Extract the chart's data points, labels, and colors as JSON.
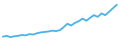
{
  "x": [
    0,
    1,
    2,
    3,
    4,
    5,
    6,
    7,
    8,
    9,
    10,
    11,
    12,
    13,
    14,
    15,
    16,
    17,
    18,
    19,
    20,
    21,
    22,
    23,
    24,
    25,
    26,
    27,
    28,
    29,
    30
  ],
  "y": [
    1.0,
    1.1,
    0.95,
    1.05,
    1.1,
    1.2,
    1.15,
    1.3,
    1.25,
    1.4,
    1.5,
    1.55,
    1.6,
    1.7,
    1.65,
    1.75,
    2.1,
    2.5,
    2.3,
    2.6,
    2.8,
    3.1,
    2.85,
    3.2,
    3.5,
    3.3,
    3.7,
    3.5,
    3.9,
    4.3,
    4.7
  ],
  "line_color": "#4ab3e8",
  "linewidth": 1.3,
  "background_color": "#ffffff"
}
